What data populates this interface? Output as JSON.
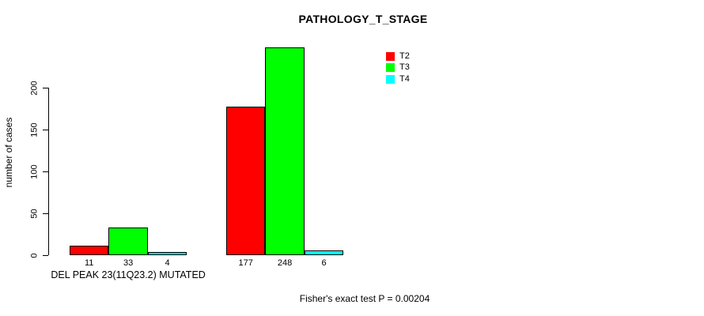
{
  "title": "PATHOLOGY_T_STAGE",
  "footer": {
    "text": "Fisher's exact test P = 0.00204"
  },
  "chart_data": {
    "type": "bar",
    "title": "PATHOLOGY_T_STAGE",
    "xlabel": "",
    "ylabel": "number of cases",
    "categories": [
      "DEL PEAK 23(11Q23.2) MUTATED",
      ""
    ],
    "series": [
      {
        "name": "T2",
        "color": "#ff0000",
        "values": [
          11,
          177
        ]
      },
      {
        "name": "T3",
        "color": "#00ff00",
        "values": [
          33,
          248
        ]
      },
      {
        "name": "T4",
        "color": "#00ffff",
        "values": [
          4,
          6
        ]
      }
    ],
    "bar_labels": [
      [
        11,
        33,
        4
      ],
      [
        177,
        248,
        6
      ]
    ],
    "yticks": [
      0,
      50,
      100,
      150,
      200
    ],
    "ylim": [
      0,
      260
    ],
    "bar_outline_color": "#000000",
    "grid": false,
    "legend": {
      "position": "top-right",
      "entries": [
        "T2",
        "T3",
        "T4"
      ]
    },
    "annotation": "Fisher's exact test P = 0.00204"
  }
}
